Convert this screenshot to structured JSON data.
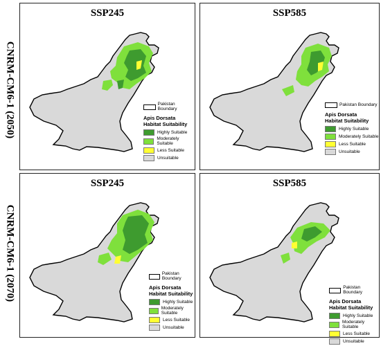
{
  "rows": [
    {
      "label": "CNRM-CM6-1 (2050)"
    },
    {
      "label": "CNRM-CM6-1 (2070)"
    }
  ],
  "panels": [
    {
      "title": "SSP245",
      "suitability": "high-wide"
    },
    {
      "title": "SSP585",
      "suitability": "high-mid"
    },
    {
      "title": "SSP245",
      "suitability": "high-wide"
    },
    {
      "title": "SSP585",
      "suitability": "high-narrow"
    }
  ],
  "legend": {
    "boundary_label": "Pakistan Boundary",
    "title_line1": "Apis Dorsata",
    "title_line2": "Habitat Suitability",
    "items": [
      {
        "label": "Highly Suitable",
        "color": "#3e9b2f"
      },
      {
        "label": "Moderately Suitable",
        "color": "#7fe03c"
      },
      {
        "label": "Less Suitable",
        "color": "#ffff33"
      },
      {
        "label": "Unsuitable",
        "color": "#d9d9d9"
      }
    ]
  },
  "colors": {
    "unsuitable": "#d9d9d9",
    "moderate": "#7fe03c",
    "high": "#3e9b2f",
    "less": "#ffff33",
    "boundary": "#000000"
  }
}
